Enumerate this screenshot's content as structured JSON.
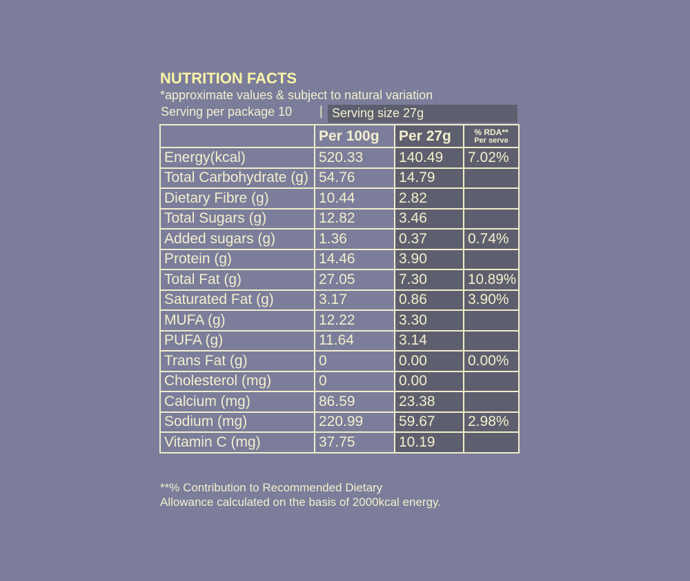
{
  "header": {
    "title": "NUTRITION FACTS",
    "subtitle": "*approximate values & subject to natural variation",
    "serving_per_package": "Serving per package 10",
    "separator": "|",
    "serving_size": "Serving size 27g"
  },
  "table": {
    "columns": [
      "Per 100g",
      "Per 27g"
    ],
    "rda_header": [
      "% RDA**",
      "Per serve"
    ],
    "rows": [
      {
        "label": "Energy(kcal)",
        "per_100g": "520.33",
        "per_27g": "140.49",
        "rda": "7.02%"
      },
      {
        "label": "Total Carbohydrate (g)",
        "per_100g": "54.76",
        "per_27g": "14.79"
      },
      {
        "label": "Dietary Fibre (g)",
        "per_100g": "10.44",
        "per_27g": "2.82"
      },
      {
        "label": "Total Sugars (g)",
        "per_100g": "12.82",
        "per_27g": "3.46"
      },
      {
        "label": "Added sugars (g)",
        "per_100g": "1.36",
        "per_27g": "0.37",
        "rda": "0.74%"
      },
      {
        "label": "Protein (g)",
        "per_100g": "14.46",
        "per_27g": "3.90"
      },
      {
        "label": "Total Fat (g)",
        "per_100g": "27.05",
        "per_27g": "7.30",
        "rda": "10.89%"
      },
      {
        "label": "Saturated Fat (g)",
        "per_100g": "3.17",
        "per_27g": "0.86",
        "rda": "3.90%"
      },
      {
        "label": "MUFA (g)",
        "per_100g": "12.22",
        "per_27g": "3.30"
      },
      {
        "label": "PUFA (g)",
        "per_100g": "11.64",
        "per_27g": "3.14"
      },
      {
        "label": "Trans Fat (g)",
        "per_100g": "0",
        "per_27g": "0.00",
        "rda": "0.00%"
      },
      {
        "label": "Cholesterol (mg)",
        "per_100g": "0",
        "per_27g": "0.00"
      },
      {
        "label": "Calcium (mg)",
        "per_100g": "86.59",
        "per_27g": "23.38"
      },
      {
        "label": "Sodium (mg)",
        "per_100g": "220.99",
        "per_27g": "59.67",
        "rda": "2.98%"
      },
      {
        "label": "Vitamin C (mg)",
        "per_100g": "37.75",
        "per_27g": "10.19"
      }
    ]
  },
  "footnote": [
    "**% Contribution to Recommended Dietary",
    "Allowance calculated on the basis of 2000kcal energy."
  ]
}
